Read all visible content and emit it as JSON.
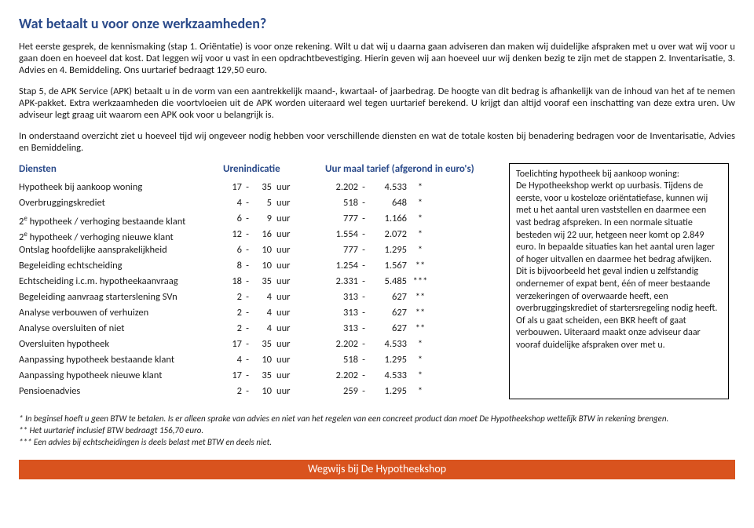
{
  "title": "Wat betaalt u voor onze werkzaamheden?",
  "para1": "Het eerste gesprek, de kennismaking (stap 1. Oriëntatie) is voor onze rekening. Wilt u dat wij u daarna gaan adviseren dan maken wij duidelijke afspraken met u over wat wij voor u gaan doen en hoeveel dat kost. Dat leggen wij voor u vast in een opdrachtbevestiging. Hierin geven wij aan hoeveel uur wij denken bezig te zijn met de stappen 2. Inventarisatie, 3. Advies en 4. Bemiddeling. Ons uurtarief bedraagt 129,50 euro.",
  "para2": "Stap 5, de APK Service (APK) betaalt u in de vorm van een aantrekkelijk maand-, kwartaal- of jaarbedrag. De hoogte van dit bedrag is afhankelijk van de inhoud van het af te nemen APK-pakket. Extra werkzaamheden die voortvloeien uit de APK worden uiteraard wel tegen uurtarief berekend. U krijgt dan altijd vooraf een inschatting van deze extra uren. Uw adviseur legt graag uit waarom een APK ook voor u belangrijk is.",
  "para3": "In onderstaand overzicht ziet u hoeveel tijd wij ongeveer nodig hebben voor verschillende diensten en wat de totale kosten bij benadering bedragen voor de Inventarisatie, Advies en Bemiddeling.",
  "headers": {
    "services": "Diensten",
    "hours": "Urenindicatie",
    "rates": "Uur maal tarief (afgerond in euro's)"
  },
  "rows": [
    {
      "service": "Hypotheek bij aankoop woning",
      "hA": "17",
      "hB": "35",
      "rA": "2.202",
      "rB": "4.533",
      "star": "*"
    },
    {
      "service": "Overbruggingskrediet",
      "hA": "4",
      "hB": "5",
      "rA": "518",
      "rB": "648",
      "star": "*"
    },
    {
      "service": "2e hypotheek / verhoging bestaande klant",
      "hA": "6",
      "hB": "9",
      "rA": "777",
      "rB": "1.166",
      "star": "*",
      "sup": true
    },
    {
      "service": "2e hypotheek / verhoging nieuwe klant",
      "hA": "12",
      "hB": "16",
      "rA": "1.554",
      "rB": "2.072",
      "star": "*",
      "sup": true
    },
    {
      "service": "Ontslag hoofdelijke aansprakelijkheid",
      "hA": "6",
      "hB": "10",
      "rA": "777",
      "rB": "1.295",
      "star": "*"
    },
    {
      "service": "Begeleiding echtscheiding",
      "hA": "8",
      "hB": "10",
      "rA": "1.254",
      "rB": "1.567",
      "star": "**"
    },
    {
      "service": "Echtscheiding i.c.m. hypotheekaanvraag",
      "hA": "18",
      "hB": "35",
      "rA": "2.331",
      "rB": "5.485",
      "star": "***"
    },
    {
      "service": "Begeleiding aanvraag starterslening SVn",
      "hA": "2",
      "hB": "4",
      "rA": "313",
      "rB": "627",
      "star": "**"
    },
    {
      "service": "Analyse verbouwen of verhuizen",
      "hA": "2",
      "hB": "4",
      "rA": "313",
      "rB": "627",
      "star": "**"
    },
    {
      "service": "Analyse oversluiten of niet",
      "hA": "2",
      "hB": "4",
      "rA": "313",
      "rB": "627",
      "star": "**"
    },
    {
      "service": "Oversluiten hypotheek",
      "hA": "17",
      "hB": "35",
      "rA": "2.202",
      "rB": "4.533",
      "star": "*"
    },
    {
      "service": "Aanpassing hypotheek bestaande klant",
      "hA": "4",
      "hB": "10",
      "rA": "518",
      "rB": "1.295",
      "star": "*"
    },
    {
      "service": "Aanpassing hypotheek nieuwe klant",
      "hA": "17",
      "hB": "35",
      "rA": "2.202",
      "rB": "4.533",
      "star": "*"
    },
    {
      "service": "Pensioenadvies",
      "hA": "2",
      "hB": "10",
      "rA": "259",
      "rB": "1.295",
      "star": "*"
    }
  ],
  "sidebar": "Toelichting hypotheek bij aankoop woning:\nDe Hypotheekshop werkt op uurbasis. Tijdens de eerste, voor u kosteloze oriëntatiefase, kunnen wij met u het aantal uren vaststellen en daarmee een vast bedrag afspreken. In een normale situatie besteden wij 22 uur, hetgeen neer komt op 2.849 euro. In bepaalde situaties kan het aantal uren lager of hoger uitvallen en daarmee het bedrag afwijken. Dit is bijvoorbeeld het geval indien u zelfstandig ondernemer of expat bent, één of meer bestaande verzekeringen of overwaarde heeft, een overbruggingskrediet of startersregeling nodig heeft. Of als u gaat scheiden, een BKR heeft of gaat verbouwen. Uiteraard maakt onze adviseur daar vooraf duidelijke afspraken over met u.",
  "footnotes": "*    In beginsel hoeft u geen BTW te betalen. Is er alleen sprake van advies en niet van het regelen van een concreet product dan moet De Hypotheekshop wettelijk BTW in rekening brengen.\n**  Het uurtarief inclusief BTW bedraagt 156,70 euro.\n*** Een advies bij echtscheidingen is deels belast met BTW en deels niet.",
  "footer": "Wegwijs bij De Hypotheekshop"
}
